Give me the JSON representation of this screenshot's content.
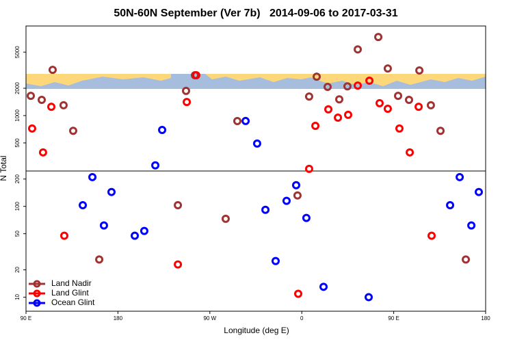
{
  "chart_data": {
    "type": "scatter",
    "title": "50N-60N September (Ver 7b)   2014-09-06 to 2017-03-31",
    "xlabel": "Longitude (deg E)",
    "ylabel": "N Total",
    "xlim": [
      90,
      540
    ],
    "xticks": [
      {
        "value": 90,
        "label": "90 E"
      },
      180,
      {
        "value": 270,
        "label": "90 W"
      },
      {
        "value": 360,
        "label": "0"
      },
      {
        "value": 450,
        "label": "90 E"
      },
      {
        "value": 540,
        "label": "180"
      }
    ],
    "ylim": [
      7,
      9700
    ],
    "log_y": true,
    "yticks": [
      10,
      20,
      50,
      100,
      200,
      500,
      1000,
      2000,
      5000
    ],
    "legend_loc": "lower left",
    "series": [
      {
        "name": "Land Nadir",
        "color": "#a03232",
        "x": [
          94.7,
          105.4,
          116.1,
          126.8,
          136.2,
          161.7,
          238.7,
          246.7,
          255.4,
          285.5,
          296.9,
          355.8,
          367.2,
          374.6,
          385.3,
          396.7,
          404.7,
          414.8,
          434.9,
          444.2,
          454.3,
          465,
          475.1,
          486.4,
          495.8,
          520.6
        ],
        "values": [
          1650,
          1490,
          3190,
          1300,
          680,
          26,
          103,
          1870,
          2780,
          73,
          870,
          132,
          1620,
          2680,
          2070,
          1510,
          2100,
          5360,
          7330,
          3300,
          1650,
          1490,
          3140,
          1300,
          680,
          26
        ]
      },
      {
        "name": "Land Glint",
        "color": "#ff0000",
        "x": [
          96,
          106.7,
          114.8,
          127.5,
          238.7,
          247.4,
          256.7,
          356.5,
          367.2,
          373.3,
          386,
          395.4,
          405.4,
          414.8,
          426.2,
          436.2,
          444.2,
          455.6,
          465.7,
          474.4,
          487.1
        ],
        "values": [
          720,
          393,
          1250,
          47.5,
          22.9,
          1410,
          2780,
          10.9,
          259,
          771,
          1170,
          949,
          1020,
          2140,
          2420,
          1370,
          1190,
          720,
          393,
          1250,
          47.5
        ]
      },
      {
        "name": "Ocean Glint",
        "color": "#0000ff",
        "x": [
          145.6,
          155,
          166.3,
          173.7,
          196.5,
          205.8,
          216.6,
          223.3,
          305,
          316.3,
          324.4,
          334.4,
          345.1,
          354.5,
          364.5,
          381.3,
          425.5,
          505.2,
          514.6,
          526,
          533.3
        ],
        "values": [
          103,
          210,
          61.6,
          144,
          47.5,
          53.6,
          283,
          695,
          871,
          492,
          91.7,
          25,
          115,
          171,
          74.5,
          13,
          10,
          103,
          210,
          61.6,
          144
        ]
      }
    ]
  }
}
